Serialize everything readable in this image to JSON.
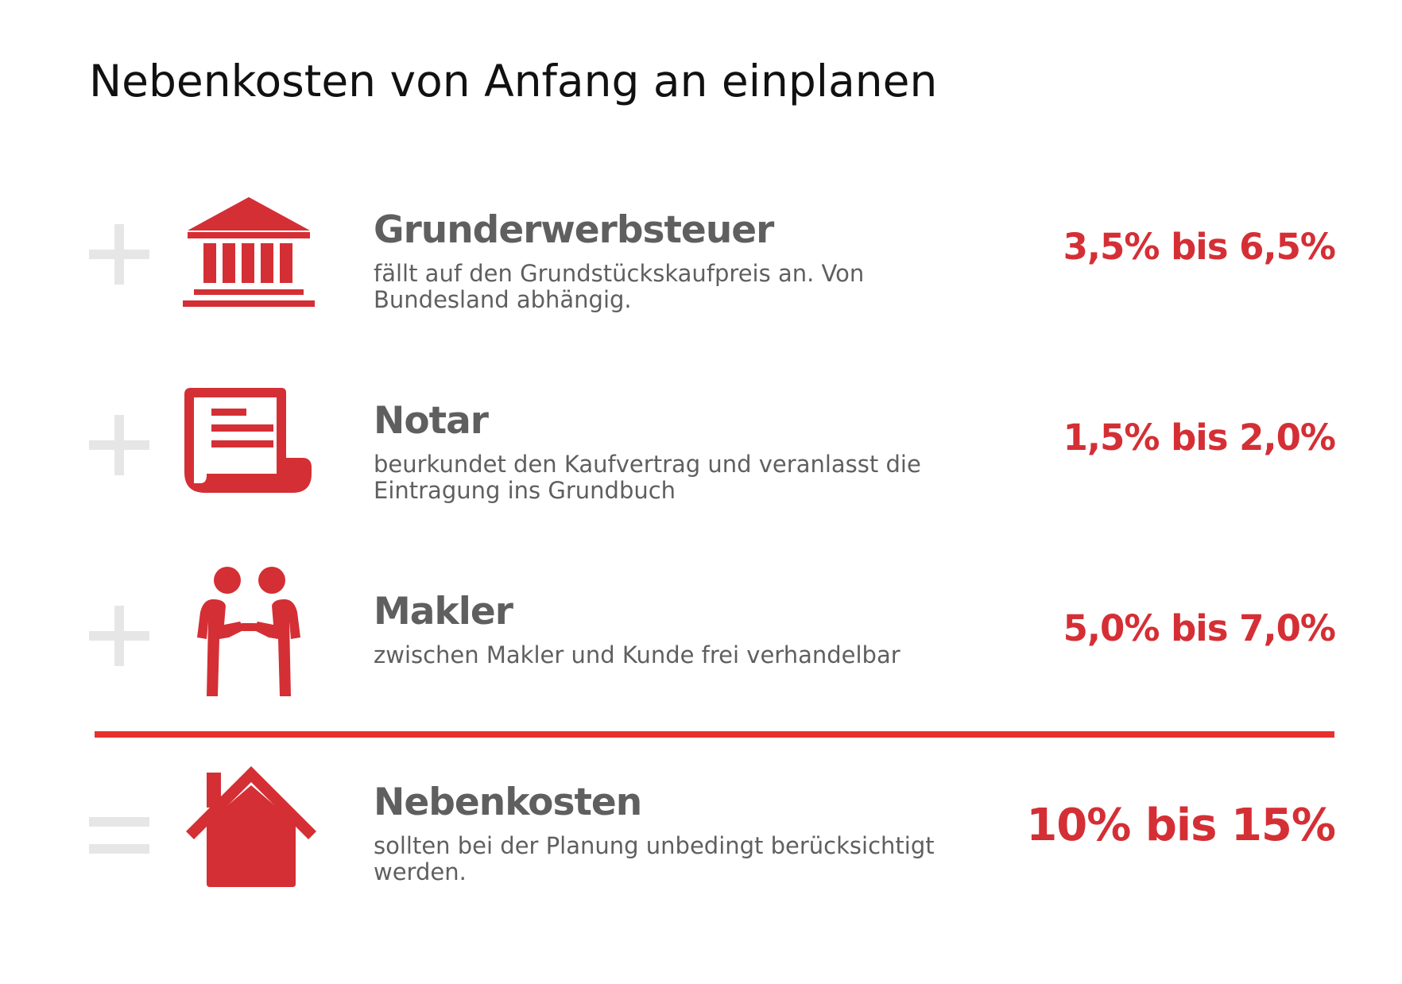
{
  "title": "Nebenkosten von Anfang an einplanen",
  "colors": {
    "accent": "#d42f35",
    "divider": "#e8312f",
    "text": "#5f5f5f",
    "operator": "#e6e6e6"
  },
  "items": [
    {
      "operator_icon": "plus-icon",
      "icon": "bank-building-icon",
      "title": "Grunderwerbsteuer",
      "description": "fällt auf den Grundstückskaufpreis an. Von Bundesland abhängig.",
      "value": "3,5% bis 6,5%"
    },
    {
      "operator_icon": "plus-icon",
      "icon": "document-icon",
      "title": "Notar",
      "description": "beurkundet den Kaufvertrag und veranlasst die Eintragung ins Grundbuch",
      "value": "1,5% bis 2,0%"
    },
    {
      "operator_icon": "plus-icon",
      "icon": "handshake-icon",
      "title": "Makler",
      "description": "zwischen Makler und Kunde frei verhandelbar",
      "value": "5,0% bis 7,0%"
    }
  ],
  "total": {
    "operator_icon": "equals-icon",
    "icon": "house-icon",
    "title": "Nebenkosten",
    "description": "sollten bei der Planung unbedingt berücksichtigt werden.",
    "value": "10% bis 15%"
  }
}
